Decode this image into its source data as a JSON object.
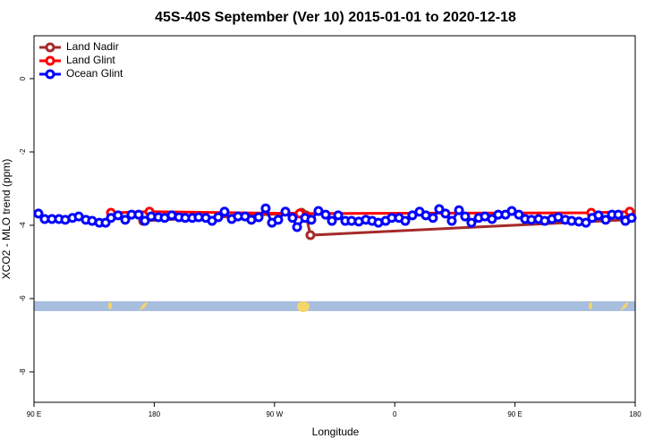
{
  "chart_data": {
    "type": "line",
    "title": "45S-40S September (Ver 10)   2015-01-01 to 2020-12-18",
    "x_label": "Longitude",
    "y_label": "XCO2 - MLO trend (ppm)",
    "xlim": [
      90,
      540
    ],
    "ylim": [
      -8.83,
      1.17
    ],
    "xticks": [
      {
        "value": 90,
        "label": "90 E"
      },
      180,
      {
        "value": 270,
        "label": "90 W"
      },
      {
        "value": 360,
        "label": "0"
      },
      {
        "value": 450,
        "label": "90 E"
      },
      {
        "value": 540,
        "label": "180"
      }
    ],
    "yticks": [
      0,
      -2,
      -4,
      -6,
      -8
    ],
    "legend": "top-left",
    "series": [
      {
        "name": "Land Nadir",
        "color": "#a52a2a",
        "x": [
          171.7,
          290.2,
          293.6,
          296.9,
          533.3
        ],
        "values": [
          -3.88,
          -3.66,
          -3.73,
          -4.27,
          -3.85
        ]
      },
      {
        "name": "Land Glint",
        "color": "#ff0000",
        "x": [
          147.6,
          176.4,
          288.9,
          507.1,
          535.9
        ],
        "values": [
          -3.66,
          -3.63,
          -3.68,
          -3.66,
          -3.63
        ]
      },
      {
        "name": "Ocean Glint",
        "color": "#0000ff",
        "x": [
          93.3,
          98.0,
          103.4,
          108.7,
          113.4,
          118.8,
          123.5,
          128.8,
          133.5,
          138.9,
          143.6,
          147.6,
          152.9,
          158.3,
          163.0,
          168.3,
          173.0,
          177.7,
          183.1,
          187.8,
          193.1,
          198.5,
          203.2,
          208.5,
          213.2,
          218.6,
          223.3,
          227.9,
          232.6,
          238.0,
          242.7,
          248.0,
          252.7,
          258.1,
          263.4,
          268.1,
          272.8,
          278.2,
          283.5,
          286.9,
          292.9,
          297.6,
          302.9,
          308.3,
          313.0,
          317.7,
          323.0,
          327.7,
          333.1,
          338.4,
          343.1,
          347.8,
          353.2,
          357.8,
          363.2,
          367.9,
          373.2,
          378.6,
          383.3,
          388.6,
          393.3,
          398.0,
          402.7,
          408.1,
          412.7,
          417.4,
          422.8,
          427.5,
          432.8,
          437.5,
          442.9,
          447.6,
          452.9,
          457.6,
          462.3,
          467.7,
          472.3,
          477.7,
          482.4,
          487.7,
          492.4,
          497.8,
          503.1,
          507.8,
          512.5,
          517.9,
          522.6,
          527.3,
          532.6,
          537.3
        ],
        "values": [
          -3.68,
          -3.83,
          -3.83,
          -3.83,
          -3.85,
          -3.8,
          -3.76,
          -3.85,
          -3.88,
          -3.93,
          -3.93,
          -3.8,
          -3.73,
          -3.85,
          -3.71,
          -3.71,
          -3.88,
          -3.76,
          -3.78,
          -3.8,
          -3.73,
          -3.78,
          -3.8,
          -3.8,
          -3.78,
          -3.8,
          -3.88,
          -3.78,
          -3.63,
          -3.83,
          -3.76,
          -3.76,
          -3.85,
          -3.78,
          -3.54,
          -3.93,
          -3.85,
          -3.63,
          -3.8,
          -4.05,
          -3.8,
          -3.85,
          -3.61,
          -3.71,
          -3.88,
          -3.73,
          -3.88,
          -3.88,
          -3.9,
          -3.85,
          -3.88,
          -3.93,
          -3.88,
          -3.8,
          -3.8,
          -3.88,
          -3.73,
          -3.63,
          -3.73,
          -3.8,
          -3.56,
          -3.68,
          -3.88,
          -3.59,
          -3.76,
          -3.93,
          -3.8,
          -3.76,
          -3.83,
          -3.71,
          -3.71,
          -3.61,
          -3.71,
          -3.83,
          -3.85,
          -3.83,
          -3.88,
          -3.83,
          -3.78,
          -3.85,
          -3.88,
          -3.9,
          -3.93,
          -3.8,
          -3.73,
          -3.85,
          -3.71,
          -3.71,
          -3.88,
          -3.8
        ]
      }
    ]
  }
}
